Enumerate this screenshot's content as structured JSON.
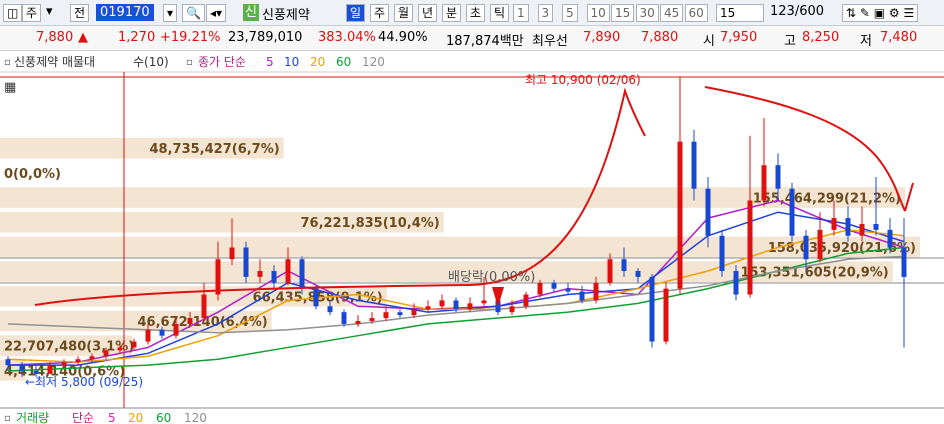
{
  "toolbar": {
    "type_label": "주",
    "prev": "전",
    "code": "019170",
    "badge": "신",
    "name": "신풍제약",
    "periods": [
      "일",
      "주",
      "월",
      "년",
      "분",
      "초",
      "틱"
    ],
    "active_period": 0,
    "intervals": [
      "1",
      "3",
      "5",
      "10",
      "15",
      "30",
      "45",
      "60"
    ],
    "interval_value": "15",
    "count": "123/600"
  },
  "quote": {
    "price": "7,880",
    "arrow": "▲",
    "change": "1,270",
    "change_pct": "+19.21%",
    "volume": "23,789,010",
    "vol_ratio": "383.04%",
    "turnover": "44.90%",
    "amount": "187,874백만",
    "best_label": "최우선",
    "ask": "7,890",
    "bid": "7,880",
    "open_label": "시",
    "open": "7,950",
    "high_label": "고",
    "high": "8,250",
    "low_label": "저",
    "low": "7,480"
  },
  "chart_data": {
    "type": "candlestick",
    "legend_title": "신풍제약 매물대",
    "profile_label": "수(10)",
    "ma_label": "종가 단순",
    "ylim": [
      5270,
      10985
    ],
    "up_color": "#e01010",
    "down_color": "#1848d0",
    "candles": [
      [
        6100,
        6150,
        5900,
        6000
      ],
      [
        6000,
        6050,
        5800,
        5900
      ],
      [
        5900,
        6000,
        5800,
        5850
      ],
      [
        5850,
        6050,
        5850,
        6000
      ],
      [
        6000,
        6100,
        5950,
        6050
      ],
      [
        6050,
        6150,
        6000,
        6100
      ],
      [
        6100,
        6200,
        6050,
        6150
      ],
      [
        6150,
        6300,
        6100,
        6250
      ],
      [
        6250,
        6350,
        6200,
        6300
      ],
      [
        6300,
        6450,
        6250,
        6400
      ],
      [
        6400,
        6700,
        6350,
        6600
      ],
      [
        6600,
        6650,
        6450,
        6500
      ],
      [
        6500,
        6800,
        6450,
        6700
      ],
      [
        6700,
        6900,
        6650,
        6800
      ],
      [
        6800,
        7400,
        6750,
        7200
      ],
      [
        7200,
        8100,
        7100,
        7800
      ],
      [
        7800,
        8500,
        7700,
        8000
      ],
      [
        8000,
        8100,
        7400,
        7500
      ],
      [
        7500,
        7800,
        7400,
        7600
      ],
      [
        7600,
        7700,
        7300,
        7400
      ],
      [
        7400,
        8000,
        7350,
        7800
      ],
      [
        7800,
        7850,
        7200,
        7300
      ],
      [
        7300,
        7350,
        6950,
        7000
      ],
      [
        7000,
        7100,
        6850,
        6900
      ],
      [
        6900,
        6950,
        6650,
        6700
      ],
      [
        6700,
        6850,
        6650,
        6750
      ],
      [
        6750,
        6900,
        6700,
        6800
      ],
      [
        6800,
        7000,
        6750,
        6900
      ],
      [
        6900,
        6950,
        6800,
        6850
      ],
      [
        6850,
        7050,
        6800,
        6950
      ],
      [
        6950,
        7100,
        6900,
        7000
      ],
      [
        7000,
        7200,
        6950,
        7100
      ],
      [
        7100,
        7150,
        6900,
        6950
      ],
      [
        6950,
        7150,
        6900,
        7050
      ],
      [
        7050,
        7500,
        7000,
        7100
      ],
      [
        7100,
        7150,
        6850,
        6900
      ],
      [
        6900,
        7100,
        6850,
        7000
      ],
      [
        7000,
        7250,
        6950,
        7200
      ],
      [
        7200,
        7450,
        7150,
        7400
      ],
      [
        7400,
        7450,
        7250,
        7300
      ],
      [
        7300,
        7400,
        7200,
        7250
      ],
      [
        7250,
        7350,
        7050,
        7100
      ],
      [
        7100,
        7500,
        7050,
        7400
      ],
      [
        7400,
        7900,
        7350,
        7800
      ],
      [
        7800,
        8000,
        7500,
        7600
      ],
      [
        7600,
        7650,
        7400,
        7500
      ],
      [
        7500,
        7550,
        6300,
        6400
      ],
      [
        6400,
        7400,
        6350,
        7300
      ],
      [
        7300,
        10900,
        7200,
        9800
      ],
      [
        9800,
        10000,
        8800,
        9000
      ],
      [
        9000,
        9200,
        8000,
        8200
      ],
      [
        8200,
        8300,
        7500,
        7600
      ],
      [
        7600,
        7700,
        7100,
        7200
      ],
      [
        7200,
        9900,
        7150,
        8800
      ],
      [
        8800,
        10200,
        8700,
        9400
      ],
      [
        9400,
        9600,
        8800,
        9000
      ],
      [
        9000,
        9100,
        8100,
        8200
      ],
      [
        8200,
        8300,
        7600,
        7800
      ],
      [
        7800,
        8600,
        7750,
        8300
      ],
      [
        8300,
        8800,
        8200,
        8500
      ],
      [
        8500,
        8700,
        8100,
        8200
      ],
      [
        8200,
        8700,
        8100,
        8400
      ],
      [
        8400,
        9200,
        8200,
        8300
      ],
      [
        8300,
        8500,
        7900,
        8000
      ],
      [
        8000,
        8500,
        6300,
        7500
      ]
    ],
    "ma_x": [
      0,
      5,
      10,
      15,
      20,
      25,
      30,
      35,
      40,
      45,
      50,
      55,
      60,
      64
    ],
    "series": [
      {
        "name": "5",
        "color": "#b020c8",
        "values": [
          6000,
          6050,
          6300,
          6900,
          7600,
          7000,
          6950,
          7000,
          7300,
          7200,
          8500,
          8800,
          8300,
          8000
        ]
      },
      {
        "name": "10",
        "color": "#2040e0",
        "values": [
          6000,
          6000,
          6200,
          6700,
          7400,
          7100,
          6900,
          7000,
          7200,
          7300,
          8200,
          8600,
          8400,
          8100
        ]
      },
      {
        "name": "20",
        "color": "#f0a000",
        "values": [
          6100,
          6050,
          6150,
          6500,
          7100,
          7200,
          6950,
          6950,
          7050,
          7300,
          7600,
          8000,
          8300,
          8200
        ]
      },
      {
        "name": "60",
        "color": "#10a030",
        "values": [
          5900,
          5950,
          6000,
          6100,
          6300,
          6500,
          6700,
          6800,
          6900,
          7050,
          7300,
          7600,
          7900,
          8000
        ]
      },
      {
        "name": "120",
        "color": "#909090",
        "values": [
          6700,
          6650,
          6600,
          6550,
          6600,
          6700,
          6850,
          6950,
          7050,
          7200,
          7350,
          7600,
          7800,
          7850
        ]
      }
    ],
    "profile": {
      "color": "#f4e5d3",
      "bins": [
        9900,
        9480,
        9060,
        8640,
        8220,
        7800,
        7380,
        6960,
        6540,
        6120,
        5700
      ],
      "values": [
        48735427,
        0,
        155464299,
        76221835,
        158035920,
        153351605,
        66435858,
        46672140,
        22707480,
        4414140
      ],
      "value_labels": [
        "48,735,427(6,7%)",
        "0(0,0%)",
        "155,464,299(21,2%)",
        "76,221,835(10,4%)",
        "158,035,920(21,6%)",
        "153,351,605(20,9%)",
        "66,435,858(9,1%)",
        "46,672,140(6,4%)",
        "22,707,480(3,1%)",
        "4,414,140(0,6%)"
      ]
    },
    "annotations": {
      "high": "최고 10,900 (02/06)",
      "low": "←최저 5,800 (09/25)",
      "dividend": "배당락(0,00%)"
    },
    "volume_legend": {
      "title": "거래량",
      "ma_label": "단순",
      "periods": [
        "5",
        "20",
        "60",
        "120"
      ]
    }
  }
}
